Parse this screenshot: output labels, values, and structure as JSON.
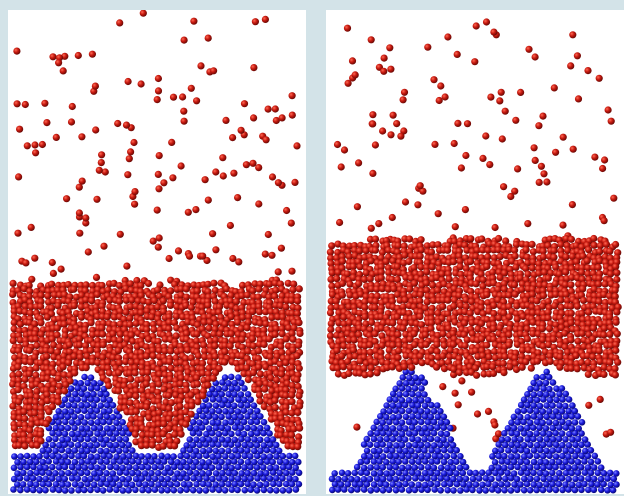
{
  "figure": {
    "background_color": "#d3e3e8",
    "panel_background": "#ffffff",
    "colors": {
      "red_particles": "#b30f08",
      "blue_particles": "#1a1ad6"
    },
    "panels": [
      {
        "id": "left",
        "description_name": "particle-simulation-left"
      },
      {
        "id": "right",
        "description_name": "particle-simulation-right"
      }
    ]
  }
}
